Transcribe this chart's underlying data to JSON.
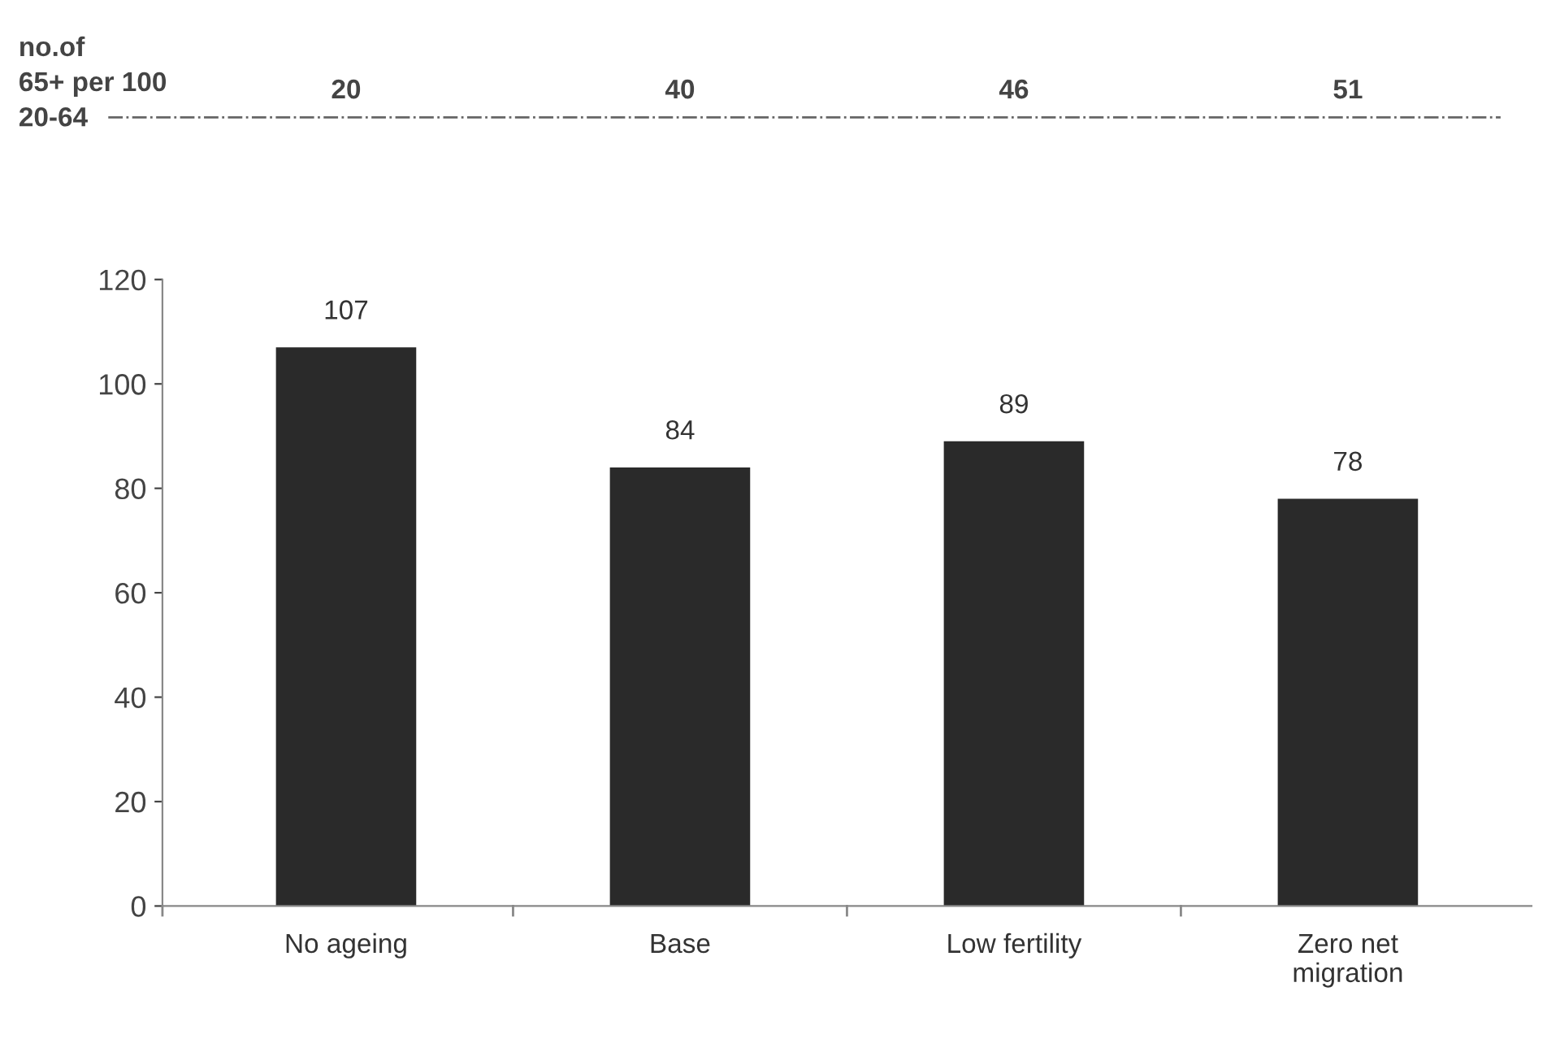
{
  "chart_data": {
    "type": "bar",
    "categories": [
      "No ageing",
      "Base",
      "Low fertility",
      "Zero net\nmigration"
    ],
    "values": [
      107,
      84,
      89,
      78
    ],
    "color": "#2a2a2a",
    "data_labels": true,
    "ylim": [
      0,
      120
    ],
    "yticks": [
      0,
      20,
      40,
      60,
      80,
      100,
      120
    ],
    "grid": false,
    "legend": false,
    "annotations": [
      "no.of\n65+ per 100\n20-64",
      "20",
      "40",
      "46",
      "51"
    ]
  }
}
